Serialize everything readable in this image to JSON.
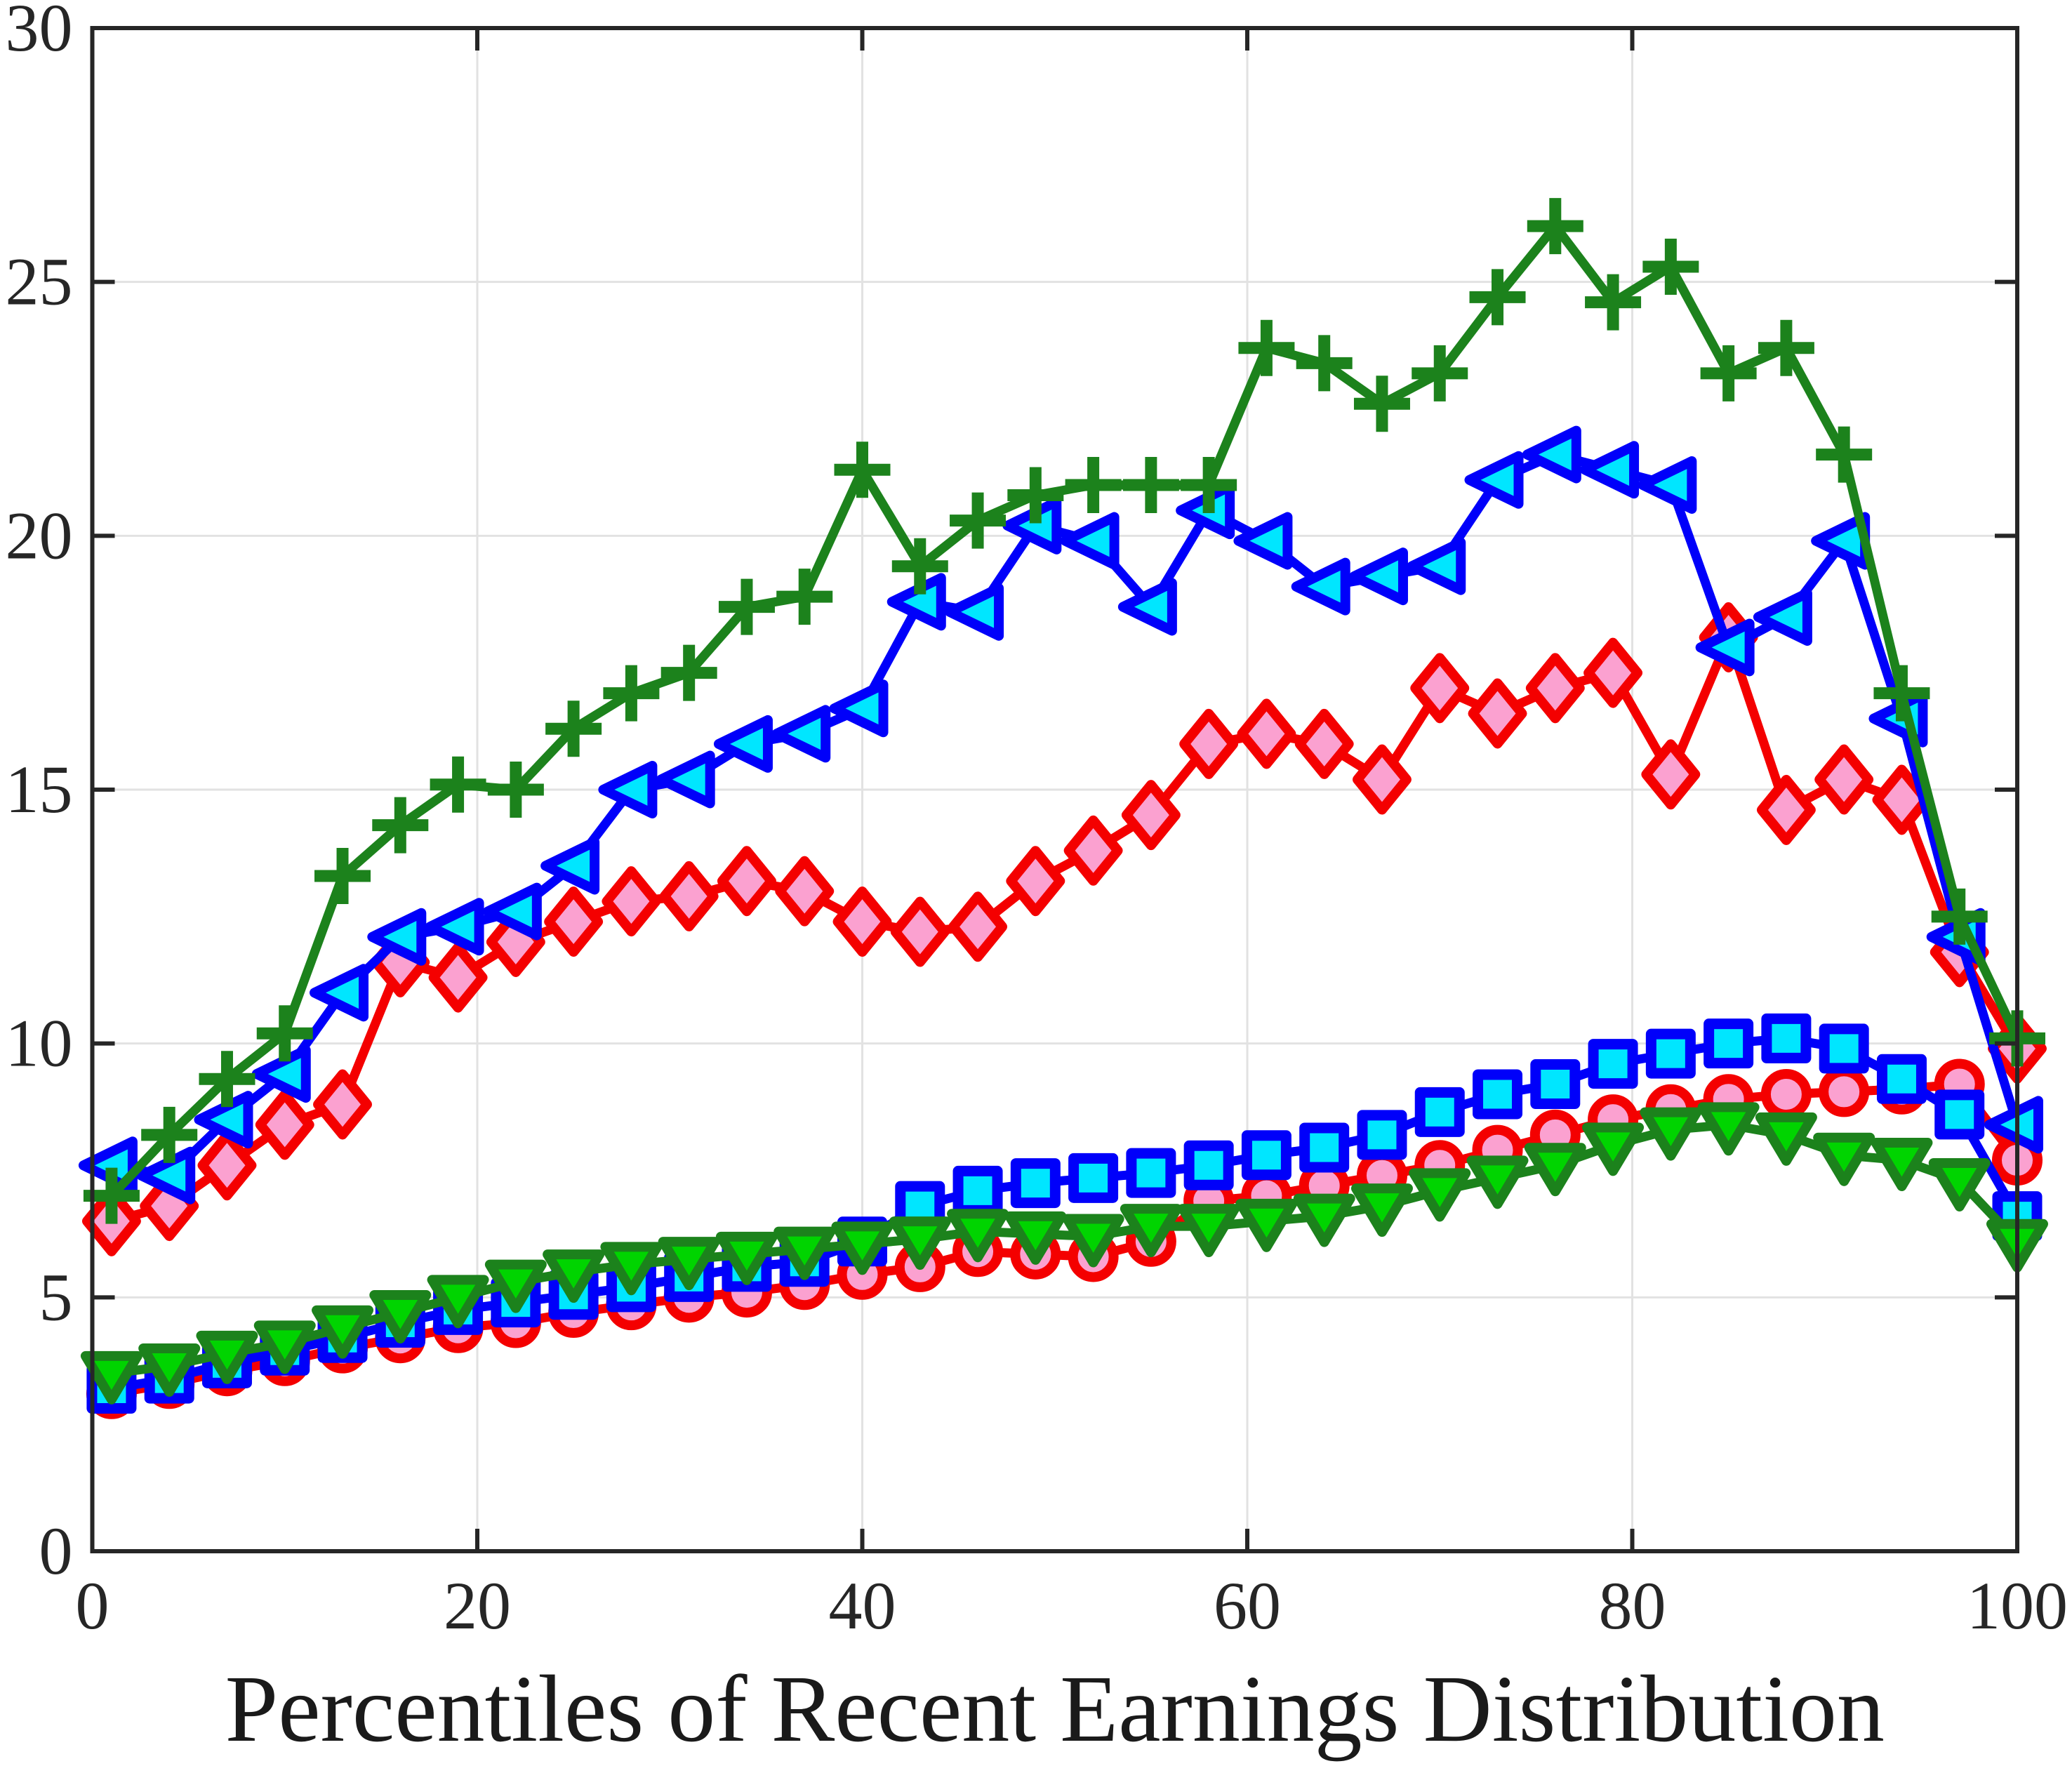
{
  "figure": {
    "background": "#ffffff",
    "axis_color": "#262626",
    "grid_color": "#e2e2e2",
    "tick_label_color": "#262626",
    "tick_font_size": 96,
    "xlabel_font_size": 136
  },
  "chart_data": {
    "type": "line",
    "title": "",
    "xlabel": "Percentiles of Recent Earnings Distribution",
    "ylabel": "",
    "xlim": [
      0,
      100
    ],
    "ylim": [
      0,
      30
    ],
    "xticks": [
      0,
      20,
      40,
      60,
      80,
      100
    ],
    "yticks": [
      0,
      5,
      10,
      15,
      20,
      25,
      30
    ],
    "grid": true,
    "legend_position": "none",
    "x": [
      1,
      4,
      7,
      10,
      13,
      16,
      19,
      22,
      25,
      28,
      31,
      34,
      37,
      40,
      43,
      46,
      49,
      52,
      55,
      58,
      61,
      64,
      67,
      70,
      73,
      76,
      79,
      82,
      85,
      88,
      91,
      94,
      97,
      100
    ],
    "series": [
      {
        "name": "red-circle",
        "line_color": "#f40000",
        "marker": "circle",
        "marker_fill": "#fba1d0",
        "marker_edge": "#f40000",
        "values": [
          3.1,
          3.3,
          3.55,
          3.75,
          4.0,
          4.2,
          4.4,
          4.5,
          4.7,
          4.85,
          5.0,
          5.1,
          5.25,
          5.45,
          5.6,
          5.9,
          5.85,
          5.8,
          6.1,
          6.9,
          7.0,
          7.2,
          7.4,
          7.6,
          7.9,
          8.2,
          8.5,
          8.7,
          8.9,
          9.0,
          9.05,
          9.1,
          9.2,
          7.7
        ]
      },
      {
        "name": "blue-square",
        "line_color": "#0000fa",
        "marker": "square",
        "marker_fill": "#00e6ff",
        "marker_edge": "#0000fa",
        "values": [
          3.2,
          3.4,
          3.7,
          3.95,
          4.2,
          4.5,
          4.75,
          4.9,
          5.05,
          5.2,
          5.4,
          5.6,
          5.7,
          6.1,
          6.8,
          7.1,
          7.25,
          7.35,
          7.45,
          7.6,
          7.8,
          7.95,
          8.2,
          8.65,
          9.0,
          9.2,
          9.6,
          9.8,
          10.0,
          10.1,
          9.9,
          9.3,
          8.6,
          6.6
        ]
      },
      {
        "name": "red-diamond",
        "line_color": "#f40000",
        "marker": "diamond",
        "marker_fill": "#fba1d0",
        "marker_edge": "#f40000",
        "values": [
          6.5,
          6.8,
          7.6,
          8.4,
          8.8,
          11.6,
          11.3,
          12.0,
          12.4,
          12.8,
          12.9,
          13.2,
          13.0,
          12.4,
          12.2,
          12.3,
          13.2,
          13.8,
          14.5,
          15.9,
          16.1,
          15.9,
          15.2,
          17.0,
          16.5,
          17.0,
          17.3,
          15.3,
          18.0,
          14.6,
          15.2,
          14.8,
          11.8,
          9.9
        ]
      },
      {
        "name": "blue-left-triangle",
        "line_color": "#0000fa",
        "marker": "triangle-left",
        "marker_fill": "#00e6ff",
        "marker_edge": "#0000fa",
        "values": [
          7.6,
          7.4,
          8.5,
          9.4,
          11.0,
          12.1,
          12.3,
          12.6,
          13.5,
          15.0,
          15.2,
          15.9,
          16.1,
          16.6,
          18.7,
          18.5,
          20.2,
          19.9,
          18.6,
          20.5,
          19.9,
          19.0,
          19.2,
          19.4,
          21.1,
          21.6,
          21.3,
          21.0,
          17.8,
          18.4,
          19.9,
          16.4,
          12.1,
          8.4
        ]
      },
      {
        "name": "green-plus",
        "line_color": "#1c821c",
        "marker": "plus",
        "marker_fill": "#1c821c",
        "marker_edge": "#1c821c",
        "values": [
          7.0,
          8.2,
          9.3,
          10.2,
          13.3,
          14.3,
          15.1,
          15.0,
          16.2,
          16.9,
          17.3,
          18.6,
          18.8,
          21.3,
          19.4,
          20.3,
          20.8,
          21.0,
          21.0,
          21.0,
          23.7,
          23.4,
          22.6,
          23.2,
          24.7,
          26.1,
          24.6,
          25.3,
          23.2,
          23.7,
          21.6,
          16.9,
          12.5,
          10.1
        ]
      },
      {
        "name": "green-down-triangle",
        "line_color": "#1c821c",
        "marker": "triangle-down",
        "marker_fill": "#00d400",
        "marker_edge": "#1c821c",
        "values": [
          3.5,
          3.65,
          3.9,
          4.1,
          4.4,
          4.7,
          5.0,
          5.3,
          5.5,
          5.65,
          5.75,
          5.85,
          5.95,
          6.05,
          6.15,
          6.3,
          6.25,
          6.2,
          6.4,
          6.4,
          6.5,
          6.6,
          6.8,
          7.1,
          7.35,
          7.6,
          8.0,
          8.3,
          8.4,
          8.2,
          7.8,
          7.7,
          7.3,
          6.1
        ]
      }
    ]
  }
}
